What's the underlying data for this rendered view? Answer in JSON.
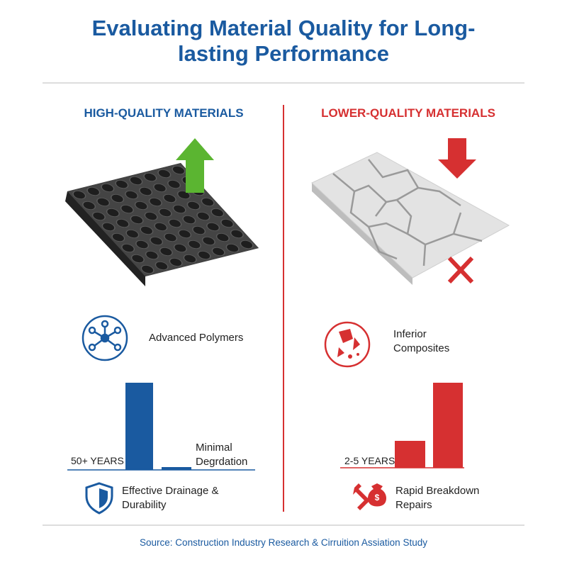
{
  "header": {
    "title": "Evaluating Material Quality for Long-lasting Performance"
  },
  "panels": [
    {
      "heading": "HIGH-QUALITY MATERIALS",
      "feature": "Advanced Polymers",
      "bar_labels": [
        "50+ YEARS",
        "Minimal Degrdation"
      ],
      "footer": "Effective Drainage & Durability"
    },
    {
      "heading": "LOWER-QUALITY MATERIALS",
      "feature": "Inferior Composites",
      "bar_labels": [
        "2-5 YEARS"
      ],
      "footer": "Rapid Breakdown Repairs"
    }
  ],
  "source": "Source: Construction Industry Research & Cirruition Assiation Study"
}
